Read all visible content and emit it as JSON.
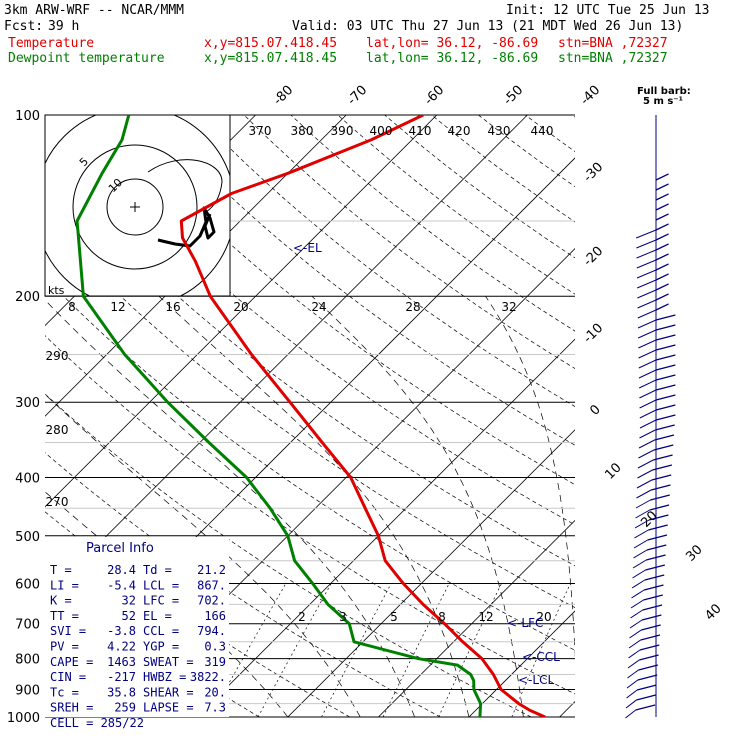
{
  "header": {
    "model": "3km ARW-WRF -- NCAR/MMM",
    "init": "Init: 12 UTC Tue 25 Jun 13",
    "fcst_label": "Fcst:",
    "fcst_value": "39 h",
    "valid": "Valid: 03 UTC Thu 27 Jun 13 (21 MDT Wed 26 Jun 13)",
    "temp_label": "Temperature",
    "dew_label": "Dewpoint temperature",
    "xy": "x,y=815.07.418.45",
    "latlon": "lat,lon= 36.12, -86.69",
    "stn": "stn=BNA ,72327"
  },
  "full_barb": {
    "line1": "Full barb:",
    "line2": "5 m s⁻¹"
  },
  "hodograph": {
    "units": "kts",
    "rings": [
      "5",
      "10"
    ]
  },
  "colors": {
    "temperature": "#e00000",
    "dewpoint": "#008000",
    "grid": "#000000",
    "parcel": "#000080",
    "wind": "#000080"
  },
  "chart_data": {
    "type": "skew-t",
    "pressure_levels": [
      100,
      200,
      300,
      400,
      500,
      600,
      700,
      800,
      900,
      1000
    ],
    "isotherm_labels": [
      "-80",
      "-70",
      "-60",
      "-50",
      "-40",
      "-30",
      "-20",
      "-10",
      "0",
      "10",
      "20",
      "30",
      "40"
    ],
    "theta_labels": [
      "370",
      "380",
      "390",
      "400",
      "410",
      "420",
      "430",
      "440",
      "290",
      "280",
      "270"
    ],
    "mixing_ratio_top": [
      "8",
      "12",
      "16",
      "20",
      "24",
      "28",
      "32"
    ],
    "mixing_ratio_bottom": [
      "2",
      "3",
      "5",
      "8",
      "12",
      "20"
    ],
    "annotations": [
      "EL",
      "LFC",
      "CCL",
      "LCL"
    ],
    "temperature": [
      {
        "p": 1000,
        "t": 28.4
      },
      {
        "p": 975,
        "t": 26.0
      },
      {
        "p": 950,
        "t": 24.0
      },
      {
        "p": 900,
        "t": 20.5
      },
      {
        "p": 850,
        "t": 18.0
      },
      {
        "p": 800,
        "t": 15.0
      },
      {
        "p": 750,
        "t": 11.0
      },
      {
        "p": 700,
        "t": 7.0
      },
      {
        "p": 650,
        "t": 2.5
      },
      {
        "p": 600,
        "t": -2.0
      },
      {
        "p": 550,
        "t": -6.5
      },
      {
        "p": 500,
        "t": -10.0
      },
      {
        "p": 450,
        "t": -14.5
      },
      {
        "p": 400,
        "t": -19.5
      },
      {
        "p": 350,
        "t": -26.5
      },
      {
        "p": 300,
        "t": -34.5
      },
      {
        "p": 250,
        "t": -44.0
      },
      {
        "p": 200,
        "t": -55.0
      },
      {
        "p": 175,
        "t": -60.5
      },
      {
        "p": 160,
        "t": -64.5
      },
      {
        "p": 150,
        "t": -66.5
      },
      {
        "p": 135,
        "t": -64.0
      },
      {
        "p": 125,
        "t": -60.0
      },
      {
        "p": 110,
        "t": -54.5
      },
      {
        "p": 100,
        "t": -51.5
      }
    ],
    "dewpoint": [
      {
        "p": 1000,
        "t": 21.2
      },
      {
        "p": 950,
        "t": 19.8
      },
      {
        "p": 900,
        "t": 17.5
      },
      {
        "p": 870,
        "t": 16.5
      },
      {
        "p": 850,
        "t": 15.5
      },
      {
        "p": 820,
        "t": 13.0
      },
      {
        "p": 800,
        "t": 8.0
      },
      {
        "p": 750,
        "t": -1.0
      },
      {
        "p": 700,
        "t": -3.5
      },
      {
        "p": 650,
        "t": -8.0
      },
      {
        "p": 600,
        "t": -12.0
      },
      {
        "p": 550,
        "t": -16.5
      },
      {
        "p": 500,
        "t": -20.0
      },
      {
        "p": 450,
        "t": -25.0
      },
      {
        "p": 400,
        "t": -31.0
      },
      {
        "p": 350,
        "t": -39.0
      },
      {
        "p": 300,
        "t": -48.0
      },
      {
        "p": 250,
        "t": -58.0
      },
      {
        "p": 200,
        "t": -69.0
      },
      {
        "p": 150,
        "t": -78.0
      },
      {
        "p": 125,
        "t": -80.5
      },
      {
        "p": 110,
        "t": -82.0
      },
      {
        "p": 100,
        "t": -84.0
      }
    ],
    "parcel_info": {
      "title": "Parcel Info",
      "rows": [
        [
          "T",
          "28.4",
          "Td",
          "21.2"
        ],
        [
          "LI",
          "-5.4",
          "LCL",
          "867."
        ],
        [
          "K",
          "32",
          "LFC",
          "702."
        ],
        [
          "TT",
          "52",
          "EL",
          "166"
        ],
        [
          "SVI",
          "-3.8",
          "CCL",
          "794."
        ],
        [
          "PV",
          "4.22",
          "YGP",
          "0.3"
        ],
        [
          "CAPE",
          "1463",
          "SWEAT",
          "319"
        ],
        [
          "CIN",
          "-217",
          "HWBZ",
          "3822."
        ],
        [
          "Tc",
          "35.8",
          "SHEAR",
          "20."
        ],
        [
          "SREH",
          "259",
          "LAPSE",
          "7.3"
        ],
        [
          "CELL",
          "285/22",
          "",
          ""
        ]
      ]
    }
  }
}
